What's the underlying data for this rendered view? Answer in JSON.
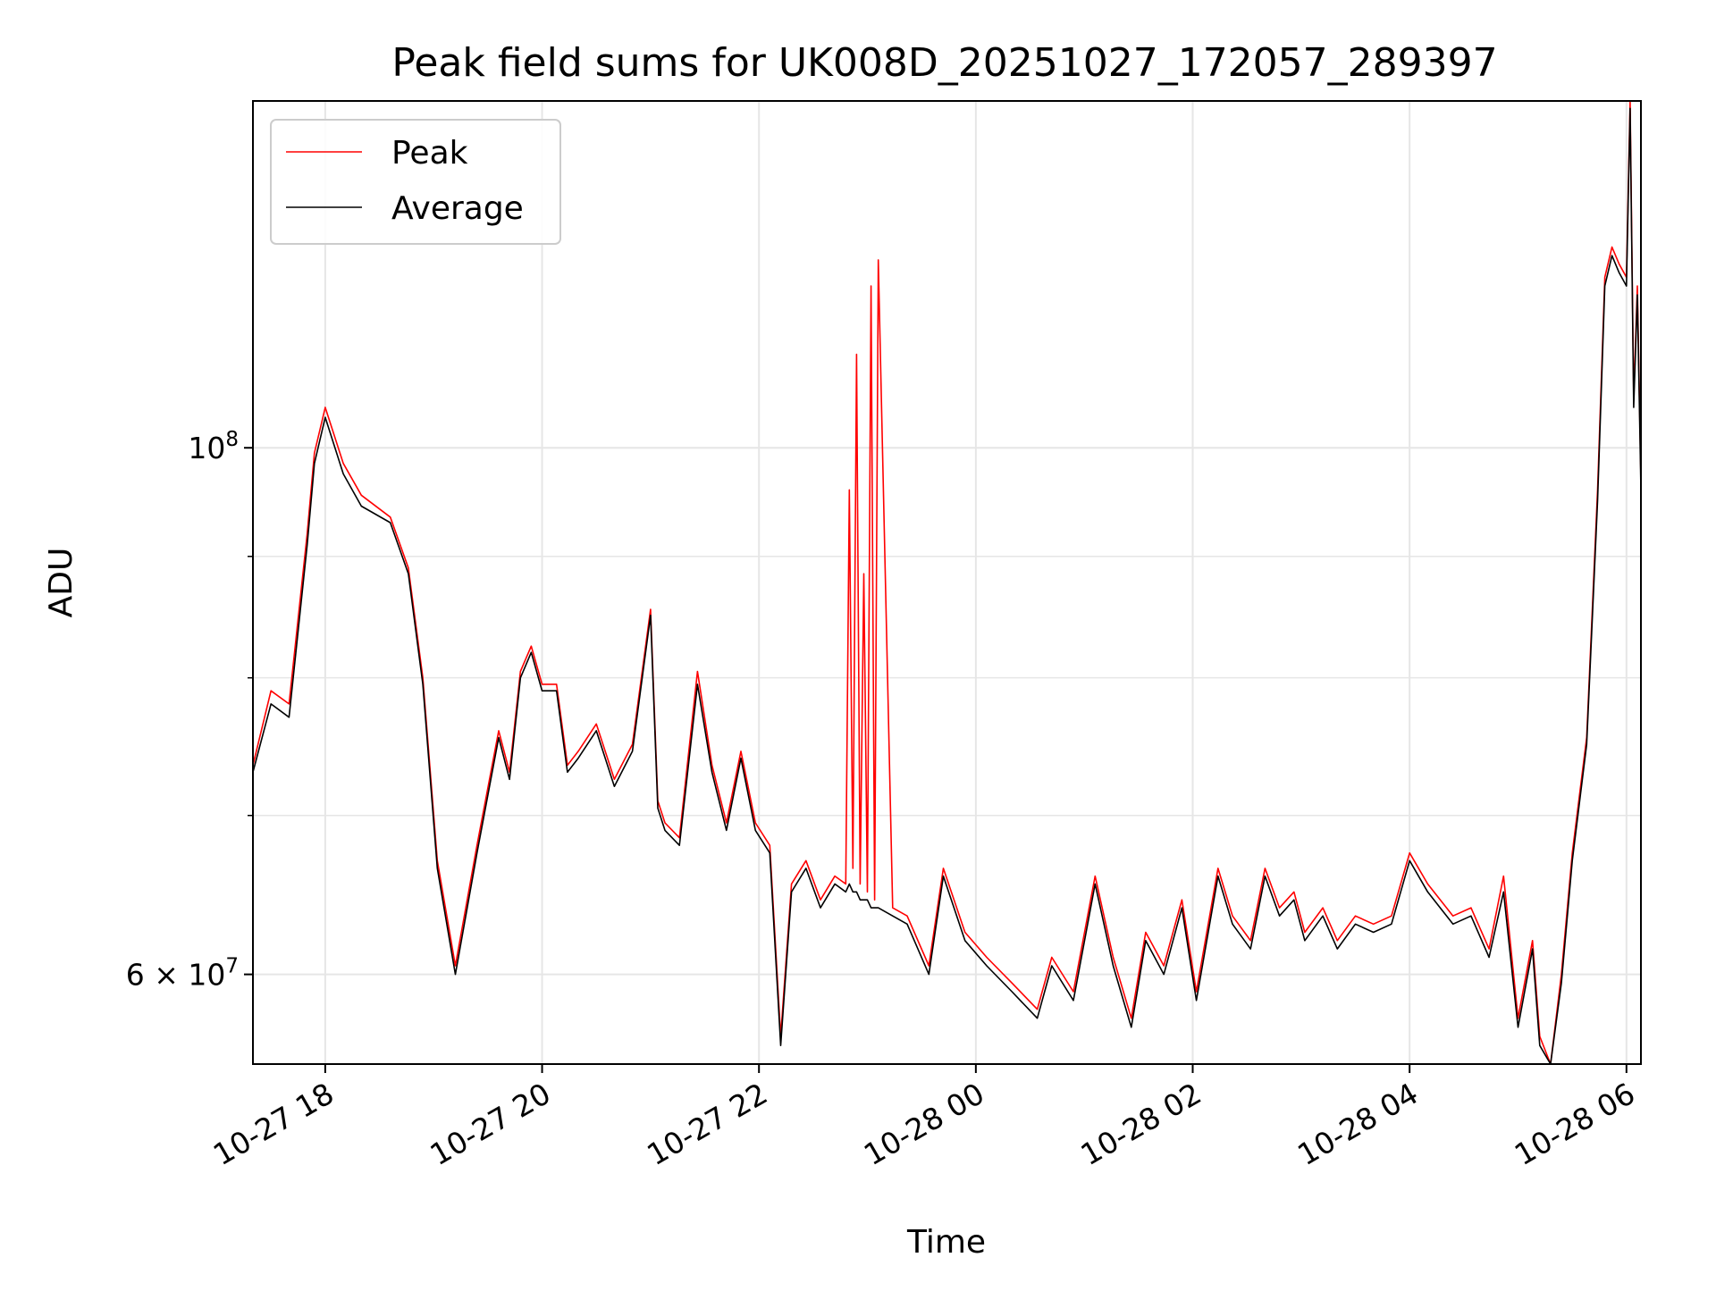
{
  "chart_data": {
    "type": "line",
    "title": "Peak field sums for UK008D_20251027_172057_289397",
    "xlabel": "Time",
    "ylabel": "ADU",
    "yscale": "log",
    "xlim": [
      "2025-10-27 17:20",
      "2025-10-28 06:08"
    ],
    "ylim": [
      55000000,
      140000000
    ],
    "x_ticks": [
      "10-27 18",
      "10-27 20",
      "10-27 22",
      "10-28 00",
      "10-28 02",
      "10-28 04",
      "10-28 06"
    ],
    "y_ticks": [
      {
        "value": 100000000,
        "base": "10",
        "exp": "8"
      },
      {
        "value": 60000000,
        "base": "6 × 10",
        "exp": "7"
      }
    ],
    "y_minor_ticks": [
      70000000,
      80000000,
      90000000
    ],
    "grid": true,
    "legend": {
      "placement": "top-left",
      "entries": [
        "Peak",
        "Average"
      ]
    },
    "colors": {
      "Peak": "#ff0000",
      "Average": "#000000"
    },
    "series": [
      {
        "name": "Peak",
        "x": [
          "2025-10-27 17:20",
          "2025-10-27 17:30",
          "2025-10-27 17:40",
          "2025-10-27 17:50",
          "2025-10-27 17:54",
          "2025-10-27 18:00",
          "2025-10-27 18:10",
          "2025-10-27 18:20",
          "2025-10-27 18:36",
          "2025-10-27 18:46",
          "2025-10-27 18:54",
          "2025-10-27 19:02",
          "2025-10-27 19:12",
          "2025-10-27 19:24",
          "2025-10-27 19:36",
          "2025-10-27 19:42",
          "2025-10-27 19:48",
          "2025-10-27 19:54",
          "2025-10-27 20:00",
          "2025-10-27 20:08",
          "2025-10-27 20:14",
          "2025-10-27 20:20",
          "2025-10-27 20:30",
          "2025-10-27 20:40",
          "2025-10-27 20:50",
          "2025-10-27 21:00",
          "2025-10-27 21:04",
          "2025-10-27 21:08",
          "2025-10-27 21:16",
          "2025-10-27 21:26",
          "2025-10-27 21:34",
          "2025-10-27 21:42",
          "2025-10-27 21:50",
          "2025-10-27 21:58",
          "2025-10-27 22:06",
          "2025-10-27 22:12",
          "2025-10-27 22:18",
          "2025-10-27 22:26",
          "2025-10-27 22:34",
          "2025-10-27 22:42",
          "2025-10-27 22:48",
          "2025-10-27 22:50",
          "2025-10-27 22:52",
          "2025-10-27 22:54",
          "2025-10-27 22:56",
          "2025-10-27 22:58",
          "2025-10-27 23:00",
          "2025-10-27 23:02",
          "2025-10-27 23:04",
          "2025-10-27 23:06",
          "2025-10-27 23:14",
          "2025-10-27 23:22",
          "2025-10-27 23:34",
          "2025-10-27 23:42",
          "2025-10-27 23:54",
          "2025-10-28 00:06",
          "2025-10-28 00:20",
          "2025-10-28 00:34",
          "2025-10-28 00:42",
          "2025-10-28 00:54",
          "2025-10-28 01:06",
          "2025-10-28 01:16",
          "2025-10-28 01:26",
          "2025-10-28 01:34",
          "2025-10-28 01:44",
          "2025-10-28 01:54",
          "2025-10-28 02:02",
          "2025-10-28 02:14",
          "2025-10-28 02:22",
          "2025-10-28 02:32",
          "2025-10-28 02:40",
          "2025-10-28 02:48",
          "2025-10-28 02:56",
          "2025-10-28 03:02",
          "2025-10-28 03:12",
          "2025-10-28 03:20",
          "2025-10-28 03:30",
          "2025-10-28 03:40",
          "2025-10-28 03:50",
          "2025-10-28 04:00",
          "2025-10-28 04:10",
          "2025-10-28 04:24",
          "2025-10-28 04:34",
          "2025-10-28 04:44",
          "2025-10-28 04:52",
          "2025-10-28 05:00",
          "2025-10-28 05:08",
          "2025-10-28 05:12",
          "2025-10-28 05:18",
          "2025-10-28 05:24",
          "2025-10-28 05:30",
          "2025-10-28 05:38",
          "2025-10-28 05:44",
          "2025-10-28 05:48",
          "2025-10-28 05:52",
          "2025-10-28 05:56",
          "2025-10-28 06:00",
          "2025-10-28 06:02",
          "2025-10-28 06:04",
          "2025-10-28 06:06",
          "2025-10-28 06:08"
        ],
        "values": [
          73500000,
          79000000,
          78000000,
          92000000,
          99500000,
          104000000,
          98500000,
          95500000,
          93500000,
          89000000,
          80000000,
          67000000,
          60500000,
          68000000,
          76000000,
          73000000,
          80500000,
          82500000,
          79500000,
          79500000,
          73500000,
          74500000,
          76500000,
          72500000,
          75000000,
          85500000,
          71000000,
          69500000,
          68500000,
          80500000,
          73500000,
          69500000,
          74500000,
          69500000,
          68000000,
          56500000,
          65500000,
          67000000,
          64500000,
          66000000,
          65500000,
          96000000,
          66500000,
          109500000,
          65500000,
          88500000,
          65000000,
          117000000,
          64500000,
          120000000,
          64000000,
          63500000,
          60500000,
          66500000,
          62500000,
          61000000,
          59500000,
          58000000,
          61000000,
          59000000,
          66000000,
          61000000,
          57500000,
          62500000,
          60500000,
          64500000,
          59000000,
          66500000,
          63500000,
          62000000,
          66500000,
          64000000,
          65000000,
          62500000,
          64000000,
          62000000,
          63500000,
          63000000,
          63500000,
          67500000,
          65500000,
          63500000,
          64000000,
          61500000,
          66000000,
          57500000,
          62000000,
          56500000,
          55000000,
          60000000,
          67500000,
          75500000,
          96000000,
          118000000,
          121500000,
          119500000,
          118000000,
          140000000,
          105000000,
          117000000,
          97000000
        ]
      },
      {
        "name": "Average",
        "x": [
          "2025-10-27 17:20",
          "2025-10-27 17:30",
          "2025-10-27 17:40",
          "2025-10-27 17:50",
          "2025-10-27 17:54",
          "2025-10-27 18:00",
          "2025-10-27 18:10",
          "2025-10-27 18:20",
          "2025-10-27 18:36",
          "2025-10-27 18:46",
          "2025-10-27 18:54",
          "2025-10-27 19:02",
          "2025-10-27 19:12",
          "2025-10-27 19:24",
          "2025-10-27 19:36",
          "2025-10-27 19:42",
          "2025-10-27 19:48",
          "2025-10-27 19:54",
          "2025-10-27 20:00",
          "2025-10-27 20:08",
          "2025-10-27 20:14",
          "2025-10-27 20:20",
          "2025-10-27 20:30",
          "2025-10-27 20:40",
          "2025-10-27 20:50",
          "2025-10-27 21:00",
          "2025-10-27 21:04",
          "2025-10-27 21:08",
          "2025-10-27 21:16",
          "2025-10-27 21:26",
          "2025-10-27 21:34",
          "2025-10-27 21:42",
          "2025-10-27 21:50",
          "2025-10-27 21:58",
          "2025-10-27 22:06",
          "2025-10-27 22:12",
          "2025-10-27 22:18",
          "2025-10-27 22:26",
          "2025-10-27 22:34",
          "2025-10-27 22:42",
          "2025-10-27 22:48",
          "2025-10-27 22:50",
          "2025-10-27 22:52",
          "2025-10-27 22:54",
          "2025-10-27 22:56",
          "2025-10-27 22:58",
          "2025-10-27 23:00",
          "2025-10-27 23:02",
          "2025-10-27 23:04",
          "2025-10-27 23:06",
          "2025-10-27 23:14",
          "2025-10-27 23:22",
          "2025-10-27 23:34",
          "2025-10-27 23:42",
          "2025-10-27 23:54",
          "2025-10-28 00:06",
          "2025-10-28 00:20",
          "2025-10-28 00:34",
          "2025-10-28 00:42",
          "2025-10-28 00:54",
          "2025-10-28 01:06",
          "2025-10-28 01:16",
          "2025-10-28 01:26",
          "2025-10-28 01:34",
          "2025-10-28 01:44",
          "2025-10-28 01:54",
          "2025-10-28 02:02",
          "2025-10-28 02:14",
          "2025-10-28 02:22",
          "2025-10-28 02:32",
          "2025-10-28 02:40",
          "2025-10-28 02:48",
          "2025-10-28 02:56",
          "2025-10-28 03:02",
          "2025-10-28 03:12",
          "2025-10-28 03:20",
          "2025-10-28 03:30",
          "2025-10-28 03:40",
          "2025-10-28 03:50",
          "2025-10-28 04:00",
          "2025-10-28 04:10",
          "2025-10-28 04:24",
          "2025-10-28 04:34",
          "2025-10-28 04:44",
          "2025-10-28 04:52",
          "2025-10-28 05:00",
          "2025-10-28 05:08",
          "2025-10-28 05:12",
          "2025-10-28 05:18",
          "2025-10-28 05:24",
          "2025-10-28 05:30",
          "2025-10-28 05:38",
          "2025-10-28 05:44",
          "2025-10-28 05:48",
          "2025-10-28 05:52",
          "2025-10-28 05:56",
          "2025-10-28 06:00",
          "2025-10-28 06:02",
          "2025-10-28 06:04",
          "2025-10-28 06:06",
          "2025-10-28 06:08"
        ],
        "values": [
          73000000,
          78000000,
          77000000,
          91000000,
          98500000,
          103000000,
          97500000,
          94500000,
          93000000,
          88500000,
          79500000,
          66500000,
          60000000,
          67500000,
          75500000,
          72500000,
          80000000,
          82000000,
          79000000,
          79000000,
          73000000,
          74000000,
          76000000,
          72000000,
          74500000,
          85000000,
          70500000,
          69000000,
          68000000,
          79500000,
          73000000,
          69000000,
          74000000,
          69000000,
          67500000,
          56000000,
          65000000,
          66500000,
          64000000,
          65500000,
          65000000,
          65500000,
          65000000,
          65000000,
          64500000,
          64500000,
          64500000,
          64000000,
          64000000,
          64000000,
          63500000,
          63000000,
          60000000,
          66000000,
          62000000,
          60500000,
          59000000,
          57500000,
          60500000,
          58500000,
          65500000,
          60500000,
          57000000,
          62000000,
          60000000,
          64000000,
          58500000,
          66000000,
          63000000,
          61500000,
          66000000,
          63500000,
          64500000,
          62000000,
          63500000,
          61500000,
          63000000,
          62500000,
          63000000,
          67000000,
          65000000,
          63000000,
          63500000,
          61000000,
          65000000,
          57000000,
          61500000,
          56000000,
          55000000,
          59500000,
          67000000,
          75000000,
          95000000,
          117000000,
          120500000,
          118500000,
          117000000,
          139000000,
          104000000,
          116000000,
          96000000
        ]
      }
    ]
  }
}
